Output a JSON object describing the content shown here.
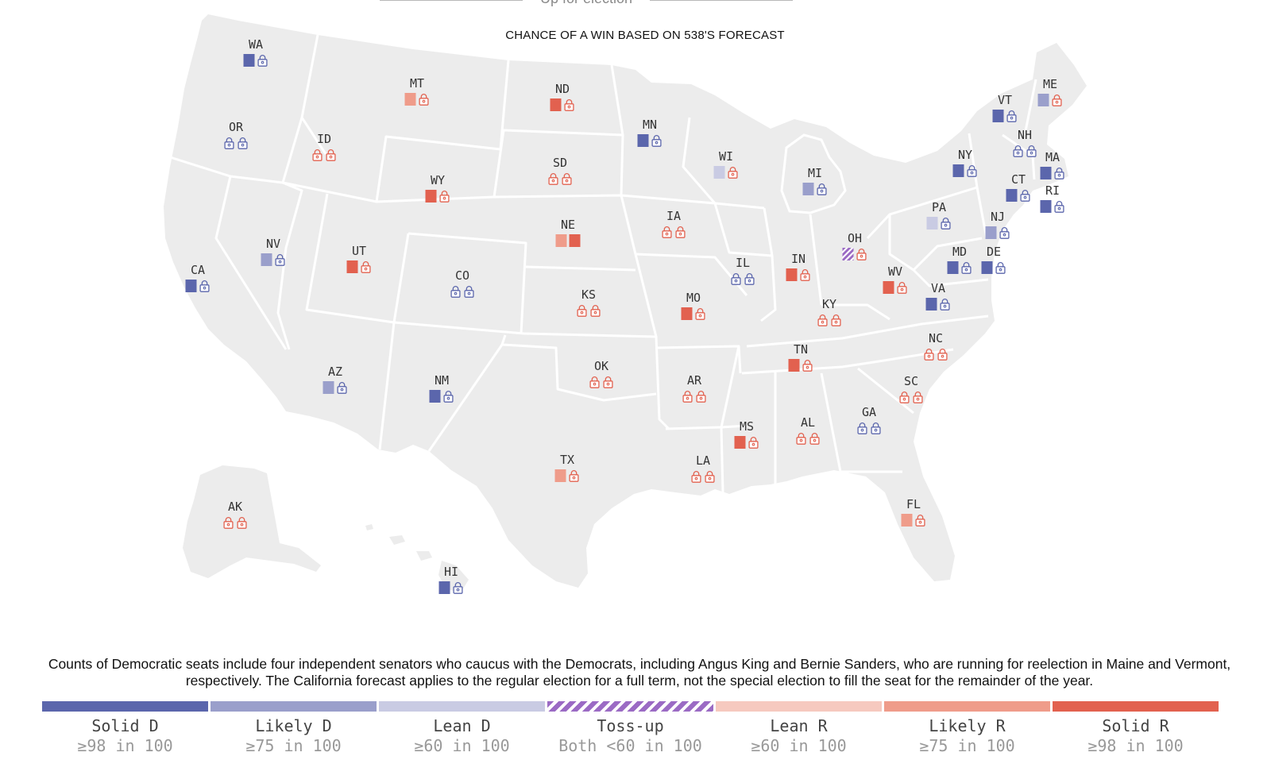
{
  "header": {
    "top_caption": "Up for election",
    "subtitle": "CHANCE OF A WIN BASED ON 538'S FORECAST"
  },
  "colors": {
    "solid_d": "#5b66ac",
    "likely_d": "#9a9fcb",
    "lean_d": "#c9cbe3",
    "toss_up": "#9b6bc4",
    "lean_r": "#f6c9bf",
    "likely_r": "#ef9c8a",
    "solid_r": "#e2614f",
    "land": "#ececec",
    "border": "#ffffff",
    "lock_d": "#5b66ac",
    "lock_r": "#e2614f"
  },
  "states": [
    {
      "abbr": "WA",
      "seats": [
        "solid_d",
        "lock_d"
      ]
    },
    {
      "abbr": "OR",
      "seats": [
        "lock_d",
        "lock_d"
      ]
    },
    {
      "abbr": "ID",
      "seats": [
        "lock_r",
        "lock_r"
      ]
    },
    {
      "abbr": "MT",
      "seats": [
        "likely_r",
        "lock_r"
      ]
    },
    {
      "abbr": "ND",
      "seats": [
        "solid_r",
        "lock_r"
      ]
    },
    {
      "abbr": "MN",
      "seats": [
        "solid_d",
        "lock_d"
      ]
    },
    {
      "abbr": "WI",
      "seats": [
        "lean_d",
        "lock_r"
      ]
    },
    {
      "abbr": "MI",
      "seats": [
        "likely_d",
        "lock_d"
      ]
    },
    {
      "abbr": "VT",
      "seats": [
        "solid_d",
        "lock_d"
      ]
    },
    {
      "abbr": "ME",
      "seats": [
        "likely_d",
        "lock_r"
      ]
    },
    {
      "abbr": "NH",
      "seats": [
        "lock_d",
        "lock_d"
      ]
    },
    {
      "abbr": "NY",
      "seats": [
        "solid_d",
        "lock_d"
      ]
    },
    {
      "abbr": "MA",
      "seats": [
        "solid_d",
        "lock_d"
      ]
    },
    {
      "abbr": "CT",
      "seats": [
        "solid_d",
        "lock_d"
      ]
    },
    {
      "abbr": "RI",
      "seats": [
        "solid_d",
        "lock_d"
      ]
    },
    {
      "abbr": "SD",
      "seats": [
        "lock_r",
        "lock_r"
      ]
    },
    {
      "abbr": "WY",
      "seats": [
        "solid_r",
        "lock_r"
      ]
    },
    {
      "abbr": "NE",
      "seats": [
        "likely_r",
        "solid_r"
      ]
    },
    {
      "abbr": "IA",
      "seats": [
        "lock_r",
        "lock_r"
      ]
    },
    {
      "abbr": "PA",
      "seats": [
        "lean_d",
        "lock_d"
      ]
    },
    {
      "abbr": "NJ",
      "seats": [
        "likely_d",
        "lock_d"
      ]
    },
    {
      "abbr": "OH",
      "seats": [
        "toss_up",
        "lock_r"
      ]
    },
    {
      "abbr": "NV",
      "seats": [
        "likely_d",
        "lock_d"
      ]
    },
    {
      "abbr": "UT",
      "seats": [
        "solid_r",
        "lock_r"
      ]
    },
    {
      "abbr": "CA",
      "seats": [
        "solid_d",
        "lock_d"
      ]
    },
    {
      "abbr": "CO",
      "seats": [
        "lock_d",
        "lock_d"
      ]
    },
    {
      "abbr": "IL",
      "seats": [
        "lock_d",
        "lock_d"
      ]
    },
    {
      "abbr": "IN",
      "seats": [
        "solid_r",
        "lock_r"
      ]
    },
    {
      "abbr": "MD",
      "seats": [
        "solid_d",
        "lock_d"
      ]
    },
    {
      "abbr": "DE",
      "seats": [
        "solid_d",
        "lock_d"
      ]
    },
    {
      "abbr": "WV",
      "seats": [
        "solid_r",
        "lock_r"
      ]
    },
    {
      "abbr": "VA",
      "seats": [
        "solid_d",
        "lock_d"
      ]
    },
    {
      "abbr": "KS",
      "seats": [
        "lock_r",
        "lock_r"
      ]
    },
    {
      "abbr": "MO",
      "seats": [
        "solid_r",
        "lock_r"
      ]
    },
    {
      "abbr": "KY",
      "seats": [
        "lock_r",
        "lock_r"
      ]
    },
    {
      "abbr": "NC",
      "seats": [
        "lock_r",
        "lock_r"
      ]
    },
    {
      "abbr": "TN",
      "seats": [
        "solid_r",
        "lock_r"
      ]
    },
    {
      "abbr": "OK",
      "seats": [
        "lock_r",
        "lock_r"
      ]
    },
    {
      "abbr": "AR",
      "seats": [
        "lock_r",
        "lock_r"
      ]
    },
    {
      "abbr": "SC",
      "seats": [
        "lock_r",
        "lock_r"
      ]
    },
    {
      "abbr": "AZ",
      "seats": [
        "likely_d",
        "lock_d"
      ]
    },
    {
      "abbr": "NM",
      "seats": [
        "solid_d",
        "lock_d"
      ]
    },
    {
      "abbr": "MS",
      "seats": [
        "solid_r",
        "lock_r"
      ]
    },
    {
      "abbr": "AL",
      "seats": [
        "lock_r",
        "lock_r"
      ]
    },
    {
      "abbr": "GA",
      "seats": [
        "lock_d",
        "lock_d"
      ]
    },
    {
      "abbr": "TX",
      "seats": [
        "likely_r",
        "lock_r"
      ]
    },
    {
      "abbr": "LA",
      "seats": [
        "lock_r",
        "lock_r"
      ]
    },
    {
      "abbr": "FL",
      "seats": [
        "likely_r",
        "lock_r"
      ]
    },
    {
      "abbr": "AK",
      "seats": [
        "lock_r",
        "lock_r"
      ]
    },
    {
      "abbr": "HI",
      "seats": [
        "solid_d",
        "lock_d"
      ]
    }
  ],
  "footnote": "Counts of Democratic seats include four independent senators who caucus with the Democrats, including Angus King and Bernie Sanders, who are running for reelection in Maine and Vermont, respectively. The California forecast applies to the regular election for a full term, not the special election to fill the seat for the remainder of the year.",
  "legend": [
    {
      "key": "solid_d",
      "label": "Solid D",
      "sub": "≥98 in 100"
    },
    {
      "key": "likely_d",
      "label": "Likely D",
      "sub": "≥75 in 100"
    },
    {
      "key": "lean_d",
      "label": "Lean D",
      "sub": "≥60 in 100"
    },
    {
      "key": "toss_up",
      "label": "Toss-up",
      "sub": "Both <60 in 100"
    },
    {
      "key": "lean_r",
      "label": "Lean R",
      "sub": "≥60 in 100"
    },
    {
      "key": "likely_r",
      "label": "Likely R",
      "sub": "≥75 in 100"
    },
    {
      "key": "solid_r",
      "label": "Solid R",
      "sub": "≥98 in 100"
    }
  ]
}
